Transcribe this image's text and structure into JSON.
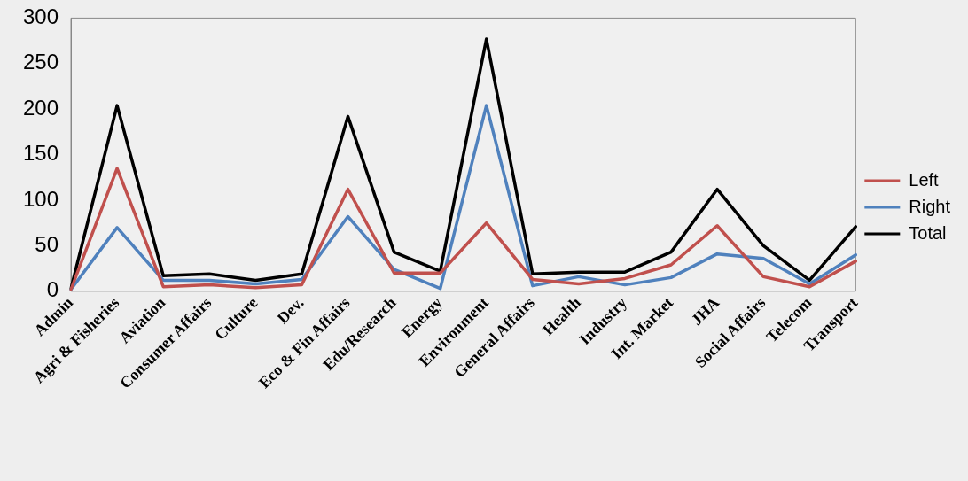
{
  "chart_data": {
    "type": "line",
    "categories": [
      "Admin",
      "Agri & Fisheries",
      "Aviation",
      "Consumer Affairs",
      "Culture",
      "Dev.",
      "Eco & Fin Affairs",
      "Edu/Research",
      "Energy",
      "Environment",
      "General Affairs",
      "Health",
      "Industry",
      "Int. Market",
      "JHA",
      "Social Affairs",
      "Telecom",
      "Transport"
    ],
    "series": [
      {
        "name": "Left",
        "color": "#c0504d",
        "values": [
          2,
          135,
          5,
          7,
          4,
          7,
          112,
          20,
          20,
          75,
          13,
          8,
          14,
          29,
          72,
          16,
          5,
          33
        ]
      },
      {
        "name": "Right",
        "color": "#4f81bd",
        "values": [
          2,
          70,
          12,
          12,
          8,
          13,
          82,
          24,
          3,
          204,
          6,
          16,
          7,
          15,
          41,
          36,
          8,
          40
        ]
      },
      {
        "name": "Total",
        "color": "#000000",
        "values": [
          3,
          204,
          17,
          19,
          12,
          19,
          192,
          43,
          22,
          277,
          19,
          21,
          21,
          43,
          112,
          50,
          12,
          71
        ]
      }
    ],
    "ylim": [
      0,
      300
    ],
    "yticks": [
      0,
      50,
      100,
      150,
      200,
      250,
      300
    ],
    "grid": false,
    "legend": "right",
    "marker": "none",
    "line_style": "solid"
  }
}
